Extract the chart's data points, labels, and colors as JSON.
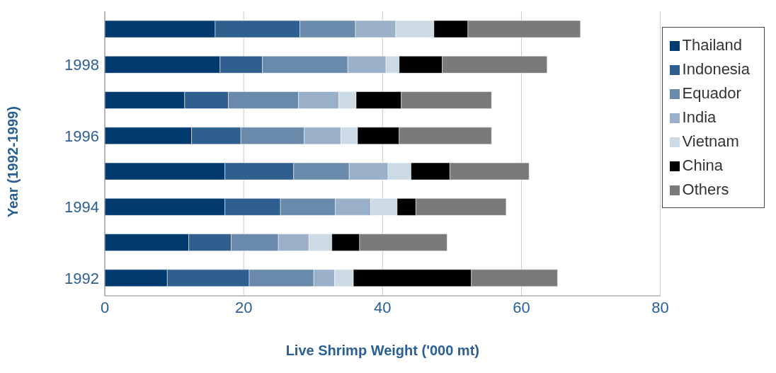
{
  "chart_data": {
    "type": "bar",
    "orientation": "horizontal",
    "stacked": true,
    "xlabel": "Live Shrimp Weight ('000 mt)",
    "ylabel": "Year (1992-1999)",
    "categories": [
      null,
      "1998",
      null,
      "1996",
      null,
      "1994",
      null,
      "1992"
    ],
    "series": [
      {
        "name": "Thailand",
        "color": "#003a6e",
        "values": [
          15.9,
          16.6,
          11.5,
          12.5,
          17.3,
          17.3,
          12.1,
          9.0
        ]
      },
      {
        "name": "Indonesia",
        "color": "#2f5f8f",
        "values": [
          12.2,
          6.1,
          6.3,
          7.1,
          9.9,
          8.0,
          6.1,
          11.8
        ]
      },
      {
        "name": "Equador",
        "color": "#6a8aab",
        "values": [
          8.0,
          12.3,
          10.1,
          9.1,
          8.0,
          7.9,
          6.8,
          9.3
        ]
      },
      {
        "name": "India",
        "color": "#9ab0c9",
        "values": [
          5.8,
          5.5,
          5.8,
          5.3,
          5.6,
          5.1,
          4.4,
          3.0
        ]
      },
      {
        "name": "Vietnam",
        "color": "#ccdae6",
        "values": [
          5.5,
          1.9,
          2.5,
          2.4,
          3.3,
          3.8,
          3.3,
          2.7
        ]
      },
      {
        "name": "China",
        "color": "#000000",
        "values": [
          4.9,
          6.2,
          6.5,
          6.0,
          5.6,
          2.7,
          4.0,
          17.0
        ]
      },
      {
        "name": "Others",
        "color": "#7a7a78",
        "values": [
          16.2,
          15.1,
          13.0,
          13.3,
          11.4,
          13.0,
          12.6,
          12.4
        ]
      }
    ],
    "xlim": [
      0,
      80
    ],
    "xticks": [
      0,
      20,
      40,
      60,
      80
    ],
    "grid": "x",
    "legend": "right"
  }
}
